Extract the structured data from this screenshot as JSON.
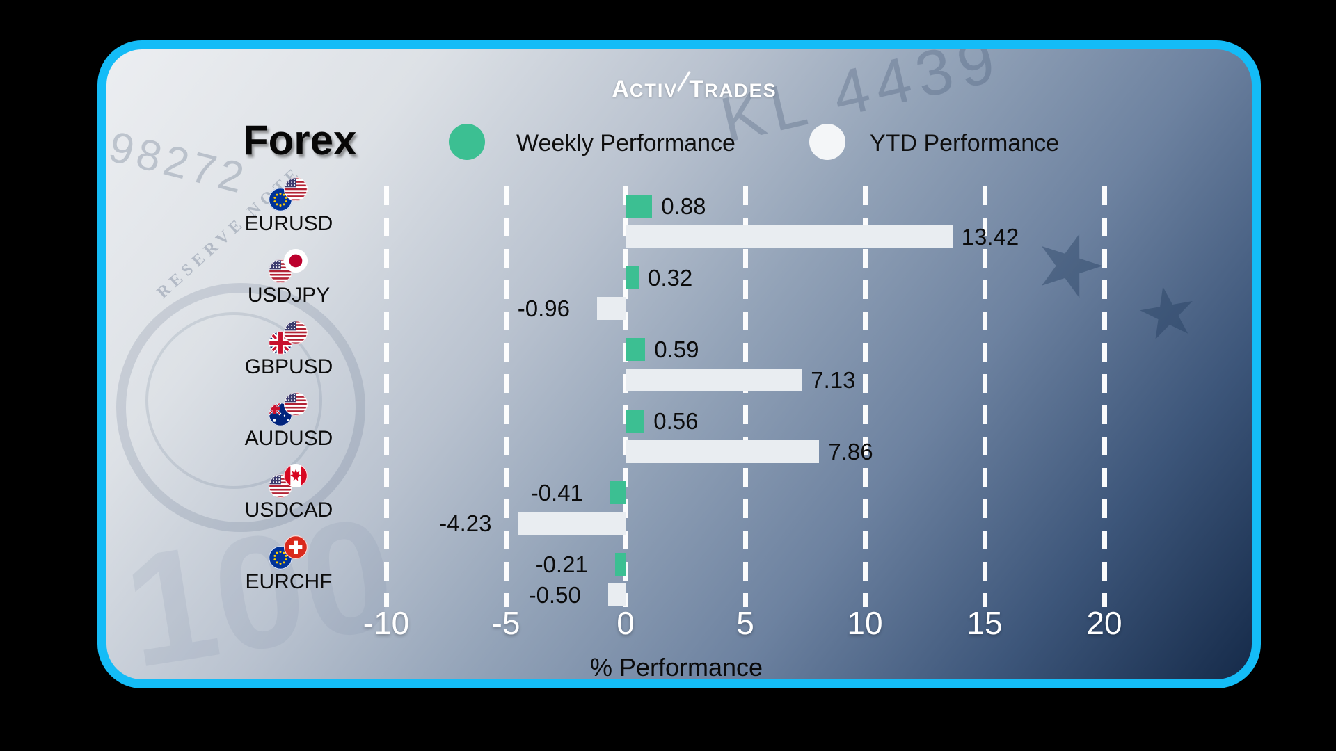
{
  "brand": {
    "logo_left": "Activ",
    "logo_right": "Trades"
  },
  "header": {
    "title": "Forex"
  },
  "legend": [
    {
      "label": "Weekly Performance",
      "color": "#3CBF92"
    },
    {
      "label": "YTD Performance",
      "color": "#F4F6F8"
    }
  ],
  "chart_data": {
    "type": "bar",
    "orientation": "horizontal",
    "title": "Forex",
    "xlabel": "% Performance",
    "x_ticks": [
      -10,
      -5,
      0,
      5,
      10,
      15,
      20
    ],
    "xlim": [
      -12,
      24
    ],
    "grid": "vertical-dashed-white",
    "legend_position": "top",
    "categories": [
      "EURUSD",
      "USDJPY",
      "GBPUSD",
      "AUDUSD",
      "USDCAD",
      "EURCHF"
    ],
    "flags": [
      [
        "eu",
        "us"
      ],
      [
        "us",
        "jp"
      ],
      [
        "gb",
        "us"
      ],
      [
        "au",
        "us"
      ],
      [
        "us",
        "ca"
      ],
      [
        "eu",
        "ch"
      ]
    ],
    "series": [
      {
        "name": "Weekly Performance",
        "color": "#3CBF92",
        "values": [
          0.88,
          0.32,
          0.59,
          0.56,
          -0.41,
          -0.21
        ]
      },
      {
        "name": "YTD Performance",
        "color": "#E9EDF1",
        "values": [
          13.42,
          -0.96,
          7.13,
          7.86,
          -4.23,
          -0.5
        ]
      }
    ]
  },
  "background_art": {
    "serial": "KL 4439",
    "edge_digits": "98272",
    "note_text": "RESERVE NOTE",
    "watermark": "100"
  },
  "colors": {
    "card_border": "#14bcf7",
    "tick_text": "#ffffff",
    "value_text": "#0b0b0b"
  }
}
